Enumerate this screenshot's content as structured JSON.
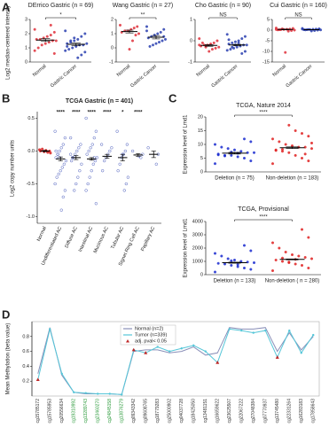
{
  "panels": [
    "A",
    "B",
    "C",
    "D"
  ],
  "chart_data": [
    {
      "type": "dotplot",
      "title": "DErrico Gastric (n = 69)",
      "ylabel": "Log2 median-centered intensity",
      "annotation": "*",
      "ylim": [
        0,
        3
      ],
      "yticks": [
        0,
        1,
        2,
        3
      ],
      "series": [
        {
          "name": "Normal",
          "color": "#e0303a",
          "values": [
            2.3,
            2.1,
            1.9,
            1.8,
            1.7,
            1.6,
            1.6,
            1.5,
            1.5,
            1.4,
            1.3,
            1.2,
            1.0,
            0.8,
            0.6,
            2.6
          ],
          "mean": 1.55,
          "sem": 0.1
        },
        {
          "name": "Gastric Cancer",
          "color": "#2a3fb0",
          "values": [
            2.2,
            2.0,
            1.8,
            1.6,
            1.5,
            1.4,
            1.3,
            1.3,
            1.2,
            1.2,
            1.1,
            1.0,
            0.9,
            0.8,
            0.7,
            0.5,
            0.3,
            1.7,
            1.5,
            1.1
          ],
          "mean": 1.25,
          "sem": 0.08
        }
      ]
    },
    {
      "type": "dotplot",
      "title": "Wang Gastric (n = 27)",
      "annotation": "**",
      "ylim": [
        -1,
        2
      ],
      "yticks": [
        -1,
        0,
        1,
        2
      ],
      "series": [
        {
          "name": "Normal",
          "color": "#e0303a",
          "values": [
            1.6,
            1.5,
            1.4,
            1.3,
            1.2,
            1.2,
            1.1,
            1.0,
            0.9,
            0.5,
            -0.1
          ],
          "mean": 1.15,
          "sem": 0.1
        },
        {
          "name": "Gastric Cancer",
          "color": "#2a3fb0",
          "values": [
            1.5,
            1.3,
            1.1,
            1.0,
            0.9,
            0.8,
            0.7,
            0.6,
            0.5,
            0.4,
            0.3,
            0.2,
            0.1,
            1.2,
            0.8
          ],
          "mean": 0.75,
          "sem": 0.12
        }
      ]
    },
    {
      "type": "dotplot",
      "title": "Cho Gastric (n = 90)",
      "annotation": "NS",
      "ylim": [
        -1,
        1
      ],
      "yticks": [
        -1,
        0,
        1
      ],
      "series": [
        {
          "name": "Normal",
          "color": "#e0303a",
          "values": [
            0.1,
            0,
            -0.1,
            -0.15,
            -0.2,
            -0.2,
            -0.25,
            -0.3,
            -0.35,
            -0.4,
            -0.5,
            -0.3,
            -0.1,
            -0.2
          ],
          "mean": -0.22,
          "sem": 0.04
        },
        {
          "name": "Gastric Cancer",
          "color": "#2a3fb0",
          "values": [
            0.3,
            0.2,
            0.1,
            0,
            -0.05,
            -0.1,
            -0.15,
            -0.2,
            -0.2,
            -0.25,
            -0.3,
            -0.35,
            -0.4,
            -0.45,
            -0.5,
            -0.6,
            -0.1,
            -0.2,
            -0.3,
            0.05
          ],
          "mean": -0.2,
          "sem": 0.03
        }
      ]
    },
    {
      "type": "dotplot",
      "title": "Cui Gastric (n = 160)",
      "annotation": "NS",
      "ylim": [
        -15,
        5
      ],
      "yticks": [
        -15,
        -10,
        -5,
        0,
        5
      ],
      "series": [
        {
          "name": "Normal",
          "color": "#e0303a",
          "values": [
            1,
            0.8,
            0.5,
            0.4,
            0.3,
            0.2,
            0.1,
            0,
            -0.2,
            -0.5,
            -10.5,
            0.6,
            0.2,
            0.3
          ],
          "mean": 0.3,
          "sem": 0.15
        },
        {
          "name": "Gastric Cancer",
          "color": "#2a3fb0",
          "values": [
            0.8,
            0.6,
            0.5,
            0.4,
            0.3,
            0.2,
            0.2,
            0.1,
            0,
            -0.2,
            -0.4,
            0.3,
            0.1,
            0.5,
            0.4
          ],
          "mean": 0.2,
          "sem": 0.05
        }
      ]
    },
    {
      "type": "dotplot",
      "title": "TCGA Gastric (n = 401)",
      "ylabel": "Log2 copy number units",
      "ylim": [
        -1.1,
        0.6
      ],
      "yticks": [
        {
          "value": -1,
          "label": "-1.0"
        },
        -0.5,
        {
          "value": 0,
          "label": "0.0"
        },
        0.5
      ],
      "annotations": [
        null,
        "****",
        "****",
        "****",
        "****",
        "*",
        "****",
        null
      ],
      "series": [
        {
          "name": "Normal",
          "color": "#d62020",
          "values": [
            0.02,
            0,
            -0.02,
            0.01,
            -0.01,
            0.03,
            0,
            -0.03
          ],
          "mean": 0,
          "sem": 0.01
        },
        {
          "name": "Undifferentiated AC",
          "color": "#2a3fb0",
          "values": [
            0.3,
            0.2,
            0.1,
            0.05,
            0,
            -0.05,
            -0.1,
            -0.15,
            -0.2,
            -0.25,
            -0.3,
            -0.35,
            -0.4,
            -0.5,
            -0.6,
            -0.7,
            -0.9,
            -0.1,
            -0.05,
            0
          ],
          "mean": -0.12,
          "sem": 0.03
        },
        {
          "name": "Diffuse AC",
          "color": "#2a3fb0",
          "values": [
            0.2,
            0.1,
            0.05,
            0,
            -0.05,
            -0.1,
            -0.15,
            -0.2,
            -0.3,
            -0.4,
            -0.5,
            -0.6,
            -0.1,
            -0.05
          ],
          "mean": -0.1,
          "sem": 0.03
        },
        {
          "name": "Intestinal AC",
          "color": "#2a3fb0",
          "values": [
            0.5,
            0.3,
            0.2,
            0.1,
            0.05,
            0,
            -0.05,
            -0.1,
            -0.15,
            -0.2,
            -0.3,
            -0.4,
            -0.5,
            -0.6,
            -0.8,
            -0.1
          ],
          "mean": -0.12,
          "sem": 0.02
        },
        {
          "name": "Mucinous AC",
          "color": "#2a3fb0",
          "values": [
            0.1,
            0.05,
            0,
            -0.05,
            -0.1,
            -0.15,
            -0.3
          ],
          "mean": -0.08,
          "sem": 0.03
        },
        {
          "name": "Tubular AC",
          "color": "#2a3fb0",
          "values": [
            0.3,
            0.1,
            0,
            -0.05,
            -0.1,
            -0.2,
            -0.3,
            -0.4,
            -0.5,
            -0.6,
            -0.05
          ],
          "mean": -0.1,
          "sem": 0.05
        },
        {
          "name": "Signet Ring Cell AC",
          "color": "#2a3fb0",
          "values": [
            0,
            -0.05,
            -0.1,
            -0.08
          ],
          "mean": -0.06,
          "sem": 0.02
        },
        {
          "name": "Papillary AC",
          "color": "#2a3fb0",
          "values": [
            0.05,
            -0.05,
            -0.2
          ],
          "mean": -0.05,
          "sem": 0.05
        }
      ]
    },
    {
      "type": "dotplot",
      "title": "TCGA, Nature 2014",
      "ylabel": "Expression level of Lmd1",
      "annotation": "****",
      "ylim": [
        0,
        20
      ],
      "yticks": [
        0,
        5,
        10,
        15,
        20
      ],
      "series": [
        {
          "name": "Deletion (n = 75)",
          "color": "#1a2bd0",
          "values": [
            3,
            4,
            5,
            5.5,
            6,
            6,
            6.5,
            7,
            7,
            7.5,
            8,
            8.5,
            9,
            10,
            11,
            12,
            6.8,
            7.2,
            5.8,
            6.2
          ],
          "mean": 6.8,
          "sem": 0.3
        },
        {
          "name": "Non-deletion (n = 183)",
          "color": "#e02020",
          "values": [
            3,
            4,
            5,
            6,
            7,
            7.5,
            8,
            8.5,
            9,
            9,
            9.5,
            10,
            11,
            12,
            13,
            14,
            15,
            17,
            8.2,
            7.8,
            10.5,
            6.5
          ],
          "mean": 8.8,
          "sem": 0.3
        }
      ]
    },
    {
      "type": "dotplot",
      "title": "TCGA, Provisional",
      "ylabel": "Expression level of Lmd1",
      "annotation": "****",
      "ylim": [
        0,
        4000
      ],
      "yticks": [
        0,
        1000,
        2000,
        3000,
        4000
      ],
      "series": [
        {
          "name": "Deletion (n = 133)",
          "color": "#1a2bd0",
          "values": [
            200,
            400,
            500,
            600,
            700,
            800,
            850,
            900,
            950,
            1000,
            1100,
            1200,
            1400,
            1600,
            1800,
            2200,
            750,
            1050
          ],
          "mean": 900,
          "sem": 40
        },
        {
          "name": "Non-deletion ( n = 280)",
          "color": "#e02020",
          "values": [
            300,
            500,
            700,
            800,
            900,
            1000,
            1100,
            1200,
            1300,
            1400,
            1500,
            1700,
            2000,
            2400,
            2800,
            3400,
            1150,
            950,
            1250
          ],
          "mean": 1150,
          "sem": 35
        }
      ]
    },
    {
      "type": "line",
      "ylabel": "Mean Methylation (beta value)",
      "ylim": [
        0,
        1
      ],
      "yticks": [
        0.2,
        0.4,
        0.6,
        0.8
      ],
      "categories": [
        "cg15785172",
        "cg15785953",
        "cg20556634",
        "cg19310992",
        "cg13289743",
        "cg23460270",
        "cg24845158",
        "cg13876279",
        "cg09343342",
        "cg09608765",
        "cg18779283",
        "cg25000902",
        "cg04037728",
        "cg18425050",
        "cg13481151",
        "cg16659622",
        "cg23625507",
        "cg22067222",
        "cg27048384",
        "cg07770937",
        "cg13745480",
        "cg22331264",
        "cg16283183",
        "cg17858643"
      ],
      "x_label_colors": [
        "#333",
        "#333",
        "#333",
        "#2a9a3a",
        "#2a9a3a",
        "#2a9a3a",
        "#2a9a3a",
        "#2a9a3a",
        "#333",
        "#333",
        "#333",
        "#333",
        "#333",
        "#333",
        "#333",
        "#333",
        "#333",
        "#333",
        "#333",
        "#333",
        "#333",
        "#333",
        "#333",
        "#333"
      ],
      "series": [
        {
          "name": "Normal (n=2)",
          "color": "#8a8fb8",
          "values": [
            0.3,
            0.92,
            0.28,
            0.05,
            0.03,
            0.03,
            0.03,
            0.02,
            0.6,
            0.62,
            0.62,
            0.58,
            0.6,
            0.66,
            0.55,
            0.58,
            0.92,
            0.9,
            0.9,
            0.92,
            0.6,
            0.85,
            0.62,
            0.8
          ]
        },
        {
          "name": "Tumor (n=339)",
          "color": "#55c6d8",
          "values": [
            0.22,
            0.9,
            0.3,
            0.05,
            0.04,
            0.03,
            0.03,
            0.02,
            0.62,
            0.58,
            0.66,
            0.6,
            0.64,
            0.68,
            0.6,
            0.45,
            0.9,
            0.88,
            0.85,
            0.88,
            0.52,
            0.88,
            0.58,
            0.82
          ]
        },
        {
          "name": "adj. pval< 0.05",
          "color": "#c02828",
          "values": [
            0.22,
            null,
            null,
            null,
            null,
            null,
            null,
            null,
            0.62,
            0.58,
            null,
            null,
            null,
            null,
            null,
            0.45,
            null,
            null,
            null,
            null,
            0.52,
            null,
            null,
            null
          ]
        }
      ]
    }
  ]
}
